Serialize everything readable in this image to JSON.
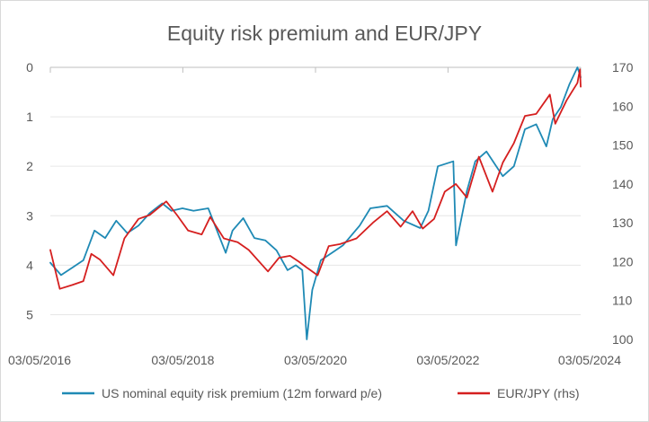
{
  "chart_data": {
    "type": "line",
    "title": "Equity risk premium and EUR/JPY",
    "x_ticks": [
      "03/05/2016",
      "03/05/2018",
      "03/05/2020",
      "03/05/2022",
      "03/05/2024"
    ],
    "x_range": [
      "2016-05-03",
      "2024-05-03"
    ],
    "y_left": {
      "ticks": [
        0,
        1,
        2,
        3,
        4,
        5
      ],
      "range": [
        0,
        5.5
      ],
      "inverted": true
    },
    "y_right": {
      "ticks": [
        100,
        110,
        120,
        130,
        140,
        150,
        160,
        170
      ],
      "range": [
        100,
        170
      ]
    },
    "grid": true,
    "legend_position": "bottom",
    "series": [
      {
        "name": "US nominal equity risk premium (12m forward p/e)",
        "axis": "left",
        "color": "#1f8ab5",
        "points": [
          [
            "2016-05-03",
            3.95
          ],
          [
            "2016-07-01",
            4.2
          ],
          [
            "2016-09-01",
            4.05
          ],
          [
            "2016-11-01",
            3.9
          ],
          [
            "2017-01-01",
            3.3
          ],
          [
            "2017-03-01",
            3.45
          ],
          [
            "2017-05-01",
            3.1
          ],
          [
            "2017-07-01",
            3.35
          ],
          [
            "2017-09-01",
            3.2
          ],
          [
            "2017-11-01",
            2.95
          ],
          [
            "2018-01-10",
            2.75
          ],
          [
            "2018-03-01",
            2.9
          ],
          [
            "2018-05-01",
            2.85
          ],
          [
            "2018-07-01",
            2.9
          ],
          [
            "2018-09-20",
            2.85
          ],
          [
            "2018-12-25",
            3.75
          ],
          [
            "2019-02-01",
            3.3
          ],
          [
            "2019-04-01",
            3.05
          ],
          [
            "2019-06-01",
            3.45
          ],
          [
            "2019-08-01",
            3.5
          ],
          [
            "2019-10-01",
            3.7
          ],
          [
            "2019-12-01",
            4.1
          ],
          [
            "2020-01-15",
            4.0
          ],
          [
            "2020-02-20",
            4.1
          ],
          [
            "2020-03-16",
            5.5
          ],
          [
            "2020-04-15",
            4.5
          ],
          [
            "2020-06-01",
            3.9
          ],
          [
            "2020-08-01",
            3.75
          ],
          [
            "2020-10-01",
            3.6
          ],
          [
            "2021-01-01",
            3.2
          ],
          [
            "2021-03-01",
            2.85
          ],
          [
            "2021-06-01",
            2.8
          ],
          [
            "2021-09-01",
            3.1
          ],
          [
            "2021-12-01",
            3.25
          ],
          [
            "2022-01-15",
            2.9
          ],
          [
            "2022-03-08",
            2.0
          ],
          [
            "2022-06-01",
            1.9
          ],
          [
            "2022-06-16",
            3.6
          ],
          [
            "2022-08-15",
            2.5
          ],
          [
            "2022-09-30",
            1.9
          ],
          [
            "2022-12-01",
            1.7
          ],
          [
            "2023-03-01",
            2.2
          ],
          [
            "2023-05-01",
            2.0
          ],
          [
            "2023-07-01",
            1.25
          ],
          [
            "2023-09-01",
            1.15
          ],
          [
            "2023-10-27",
            1.6
          ],
          [
            "2023-12-01",
            1.05
          ],
          [
            "2024-01-15",
            0.8
          ],
          [
            "2024-03-01",
            0.35
          ],
          [
            "2024-04-15",
            0.0
          ],
          [
            "2024-05-03",
            0.2
          ]
        ]
      },
      {
        "name": "EUR/JPY (rhs)",
        "axis": "right",
        "color": "#d51f1f",
        "points": [
          [
            "2016-05-03",
            123
          ],
          [
            "2016-06-24",
            113
          ],
          [
            "2016-09-01",
            114
          ],
          [
            "2016-11-01",
            115
          ],
          [
            "2016-12-15",
            122
          ],
          [
            "2017-02-01",
            120.5
          ],
          [
            "2017-04-15",
            116.5
          ],
          [
            "2017-06-15",
            126
          ],
          [
            "2017-09-01",
            131
          ],
          [
            "2017-11-01",
            132
          ],
          [
            "2018-02-01",
            135.5
          ],
          [
            "2018-04-01",
            132
          ],
          [
            "2018-06-01",
            128
          ],
          [
            "2018-08-15",
            127
          ],
          [
            "2018-10-01",
            131.5
          ],
          [
            "2018-12-15",
            126
          ],
          [
            "2019-03-01",
            125
          ],
          [
            "2019-05-01",
            123
          ],
          [
            "2019-08-15",
            117.5
          ],
          [
            "2019-10-15",
            121
          ],
          [
            "2019-12-15",
            121.5
          ],
          [
            "2020-02-01",
            120
          ],
          [
            "2020-03-15",
            118.5
          ],
          [
            "2020-05-15",
            116.5
          ],
          [
            "2020-07-15",
            124
          ],
          [
            "2020-09-15",
            124.5
          ],
          [
            "2020-12-15",
            126
          ],
          [
            "2021-03-15",
            130
          ],
          [
            "2021-06-01",
            133
          ],
          [
            "2021-08-15",
            129
          ],
          [
            "2021-10-20",
            133
          ],
          [
            "2021-12-15",
            128.5
          ],
          [
            "2022-02-15",
            131
          ],
          [
            "2022-04-15",
            138
          ],
          [
            "2022-06-15",
            140
          ],
          [
            "2022-08-15",
            136.5
          ],
          [
            "2022-10-20",
            147
          ],
          [
            "2023-01-03",
            138
          ],
          [
            "2023-03-01",
            145.5
          ],
          [
            "2023-05-01",
            150.5
          ],
          [
            "2023-07-01",
            157.5
          ],
          [
            "2023-09-01",
            158
          ],
          [
            "2023-11-15",
            163
          ],
          [
            "2023-12-15",
            155.5
          ],
          [
            "2024-02-15",
            161.5
          ],
          [
            "2024-04-15",
            166
          ],
          [
            "2024-04-29",
            169.5
          ],
          [
            "2024-05-03",
            165
          ]
        ]
      }
    ]
  }
}
